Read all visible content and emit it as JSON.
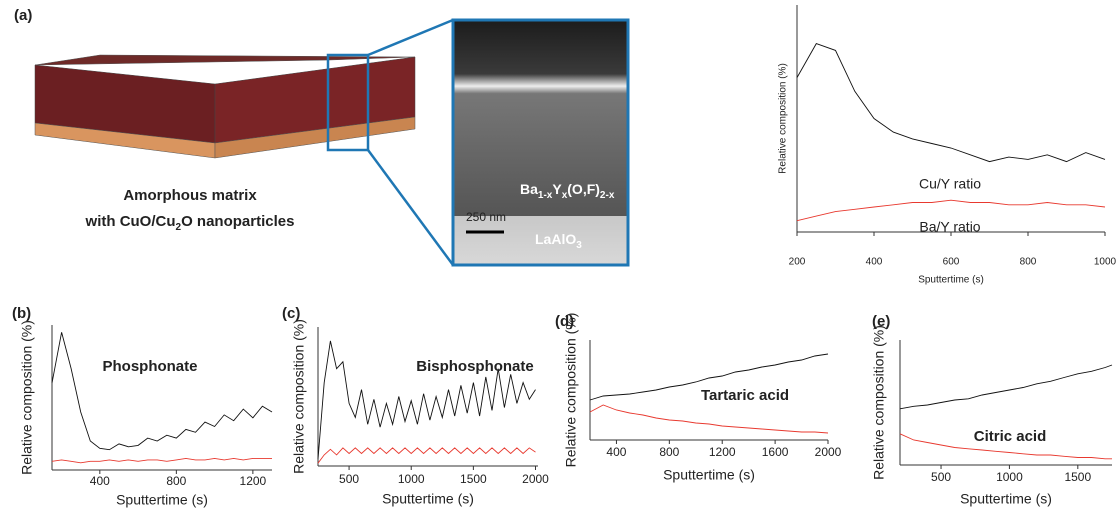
{
  "panel_labels": [
    "(a)",
    "(b)",
    "(c)",
    "(d)",
    "(e)"
  ],
  "diagram": {
    "caption_lines": [
      [
        "Amorphous matrix"
      ],
      [
        "with CuO/Cu",
        "2",
        "O nanoparticles"
      ]
    ],
    "film_label": [
      "Ba",
      "1-x",
      "Y",
      "x",
      "(O,F)",
      "2-x"
    ],
    "substrate_label": [
      "LaAlO",
      "3"
    ],
    "scale_bar": "250 nm"
  },
  "chart_data": [
    {
      "type": "line",
      "x_label": "Sputtertime (s)",
      "y_label": "Relative composition (%)",
      "xlim": [
        200,
        1000
      ],
      "ylim": [
        0,
        100
      ],
      "xticks": [
        200,
        400,
        600,
        800,
        1000
      ],
      "x": [
        200,
        250,
        300,
        350,
        400,
        450,
        500,
        550,
        600,
        650,
        700,
        750,
        800,
        850,
        900,
        950,
        1000
      ],
      "series": [
        {
          "name": "Cu/Y ratio",
          "color": "#111111",
          "values": [
            68,
            83,
            80,
            62,
            50,
            44,
            41,
            39,
            37,
            34,
            31,
            33,
            32,
            34,
            31,
            35,
            32
          ]
        },
        {
          "name": "Ba/Y ratio",
          "color": "#e8392f",
          "values": [
            5,
            7,
            9,
            10,
            11,
            12,
            13,
            13,
            14,
            13,
            13,
            12,
            12,
            13,
            12,
            12,
            11
          ]
        }
      ]
    },
    {
      "type": "line",
      "x_label": "Sputtertime (s)",
      "y_label": "Relative composition (%)",
      "annotation": "Phosphonate",
      "xlim": [
        150,
        1300
      ],
      "ylim": [
        0,
        100
      ],
      "xticks": [
        400,
        800,
        1200
      ],
      "x": [
        150,
        200,
        250,
        300,
        350,
        400,
        450,
        500,
        550,
        600,
        650,
        700,
        750,
        800,
        850,
        900,
        950,
        1000,
        1050,
        1100,
        1150,
        1200,
        1250,
        1300
      ],
      "series": [
        {
          "color": "#111111",
          "values": [
            60,
            95,
            70,
            40,
            20,
            15,
            14,
            18,
            16,
            17,
            22,
            20,
            24,
            22,
            28,
            26,
            33,
            30,
            38,
            34,
            42,
            36,
            44,
            40
          ]
        },
        {
          "color": "#e8392f",
          "values": [
            6,
            7,
            6,
            5,
            6,
            6,
            7,
            6,
            7,
            6,
            7,
            7,
            6,
            7,
            8,
            7,
            7,
            8,
            7,
            8,
            7,
            8,
            8,
            8
          ]
        }
      ]
    },
    {
      "type": "line",
      "x_label": "Sputtertime (s)",
      "y_label": "Relative composition (%)",
      "annotation": "Bisphosphonate",
      "xlim": [
        250,
        2020
      ],
      "ylim": [
        0,
        100
      ],
      "xticks": [
        500,
        1000,
        1500,
        2000
      ],
      "x": [
        250,
        300,
        350,
        400,
        450,
        500,
        550,
        600,
        650,
        700,
        750,
        800,
        850,
        900,
        950,
        1000,
        1050,
        1100,
        1150,
        1200,
        1250,
        1300,
        1350,
        1400,
        1450,
        1500,
        1550,
        1600,
        1650,
        1700,
        1750,
        1800,
        1850,
        1900,
        1950,
        2000
      ],
      "series": [
        {
          "color": "#111111",
          "values": [
            5,
            60,
            90,
            70,
            75,
            45,
            35,
            55,
            30,
            48,
            28,
            45,
            30,
            50,
            32,
            47,
            30,
            52,
            33,
            50,
            35,
            55,
            36,
            58,
            38,
            60,
            36,
            64,
            40,
            70,
            42,
            66,
            45,
            60,
            48,
            55
          ]
        },
        {
          "color": "#e8392f",
          "values": [
            2,
            8,
            12,
            8,
            13,
            9,
            13,
            9,
            13,
            9,
            13,
            9,
            13,
            9,
            13,
            9,
            13,
            9,
            13,
            9,
            13,
            9,
            13,
            9,
            13,
            9,
            13,
            9,
            13,
            9,
            13,
            9,
            13,
            9,
            13,
            10
          ]
        }
      ]
    },
    {
      "type": "line",
      "x_label": "Sputtertime (s)",
      "y_label": "Relative composition (%)",
      "annotation": "Tartaric acid",
      "xlim": [
        200,
        2000
      ],
      "ylim": [
        0,
        100
      ],
      "xticks": [
        400,
        800,
        1200,
        1600,
        2000
      ],
      "x": [
        200,
        300,
        400,
        500,
        600,
        700,
        800,
        900,
        1000,
        1100,
        1200,
        1300,
        1400,
        1500,
        1600,
        1700,
        1800,
        1900,
        2000
      ],
      "series": [
        {
          "color": "#111111",
          "values": [
            40,
            44,
            45,
            46,
            48,
            50,
            53,
            55,
            58,
            62,
            64,
            68,
            70,
            73,
            75,
            78,
            80,
            84,
            86
          ]
        },
        {
          "color": "#e8392f",
          "values": [
            28,
            35,
            30,
            27,
            25,
            22,
            20,
            19,
            17,
            16,
            14,
            13,
            12,
            11,
            10,
            9,
            8,
            8,
            7
          ]
        }
      ]
    },
    {
      "type": "line",
      "x_label": "Sputtertime (s)",
      "y_label": "Relative composition (%)",
      "annotation": "Citric acid",
      "xlim": [
        200,
        1750
      ],
      "ylim": [
        0,
        100
      ],
      "xticks": [
        500,
        1000,
        1500
      ],
      "x": [
        200,
        300,
        400,
        500,
        600,
        700,
        800,
        900,
        1000,
        1100,
        1200,
        1300,
        1400,
        1500,
        1600,
        1700,
        1750
      ],
      "series": [
        {
          "color": "#111111",
          "values": [
            45,
            47,
            48,
            50,
            52,
            53,
            56,
            58,
            60,
            62,
            65,
            67,
            70,
            73,
            75,
            78,
            80
          ]
        },
        {
          "color": "#e8392f",
          "values": [
            25,
            20,
            18,
            16,
            14,
            13,
            12,
            11,
            10,
            9,
            8,
            8,
            7,
            6,
            6,
            5,
            5
          ]
        }
      ]
    }
  ]
}
